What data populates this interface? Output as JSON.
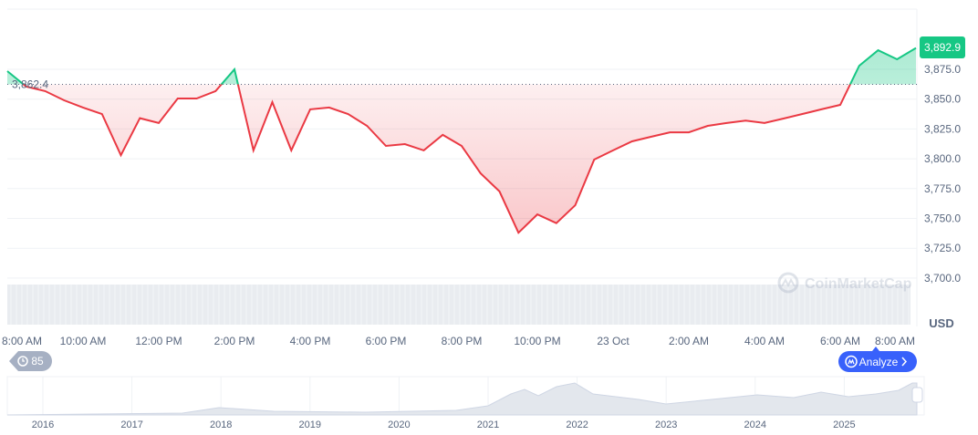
{
  "chart_data": {
    "type": "area",
    "baseline": 3862.4,
    "baseline_label": "3,862.4",
    "current_label": "3,892.9",
    "currency": "USD",
    "watermark": "CoinMarketCap",
    "colors": {
      "up": "#16c784",
      "down": "#ea3943",
      "accent": "#3861fb"
    },
    "ylim": [
      3690,
      3905
    ],
    "yticks": [
      3875,
      3850,
      3825,
      3800,
      3775,
      3750,
      3725,
      3700
    ],
    "ytick_labels": [
      "3,875.0",
      "3,850.0",
      "3,825.0",
      "3,800.0",
      "3,775.0",
      "3,750.0",
      "3,725.0",
      "3,700.0"
    ],
    "x_start": "22 Oct 8:00 AM",
    "x_end": "23 Oct 8:00 AM",
    "sample_interval_minutes": 30,
    "xtick_labels": [
      "8:00 AM",
      "10:00 AM",
      "12:00 PM",
      "2:00 PM",
      "4:00 PM",
      "6:00 PM",
      "8:00 PM",
      "10:00 PM",
      "23 Oct",
      "2:00 AM",
      "4:00 AM",
      "6:00 AM",
      "8:00 AM"
    ],
    "values": [
      3873.5,
      3860.5,
      3856.7,
      3849,
      3843,
      3837.5,
      3803,
      3834,
      3830,
      3850.5,
      3850.5,
      3856.7,
      3875,
      3807,
      3847.5,
      3807,
      3841.4,
      3843,
      3837.5,
      3827.6,
      3810.8,
      3812.3,
      3807,
      3820,
      3810.8,
      3787.8,
      3772.6,
      3738,
      3753.4,
      3746,
      3761,
      3799.3,
      3807,
      3814.6,
      3818.4,
      3822.2,
      3822.2,
      3827.6,
      3830,
      3832,
      3830,
      3833.7,
      3837.5,
      3841.4,
      3845.2,
      3878,
      3891,
      3883.4,
      3892.9
    ],
    "grid": true
  },
  "controls": {
    "history_count": "85",
    "analyze_label": "Analyze"
  },
  "navigator": {
    "years": [
      "2016",
      "2017",
      "2018",
      "2019",
      "2020",
      "2021",
      "2022",
      "2023",
      "2024",
      "2025"
    ]
  }
}
